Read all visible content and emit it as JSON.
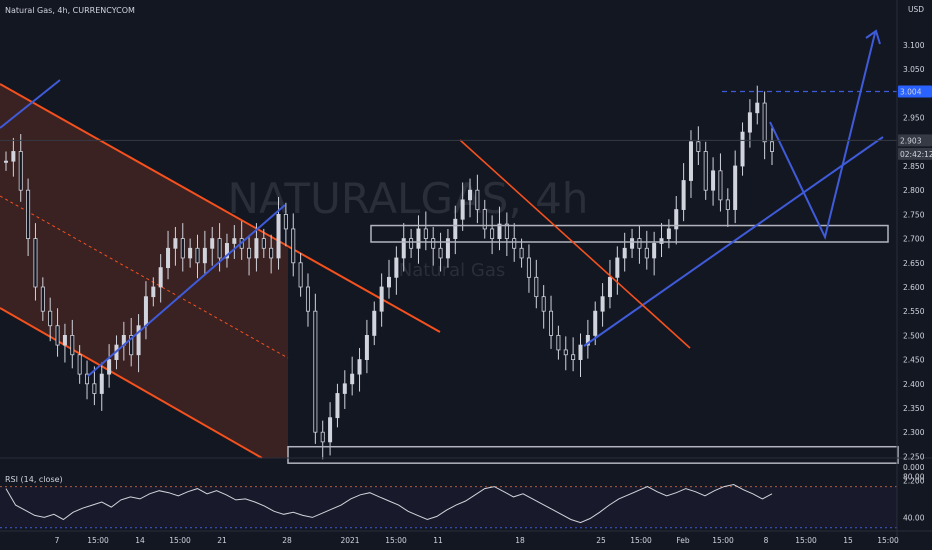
{
  "header": {
    "symbol_text": "Natural Gas, 4h, CURRENCYCOM"
  },
  "watermark": {
    "title": "NATURALGAS, 4h",
    "subtitle": "Natural Gas"
  },
  "currency": "USD",
  "price_badges": [
    {
      "label": "3.004",
      "value": 3.004,
      "color": "#2962ff"
    },
    {
      "label": "2.903",
      "value": 2.903,
      "color": "#363a45"
    },
    {
      "label": "02:42:12",
      "value": 2.875,
      "color": "#363a45"
    }
  ],
  "rsi": {
    "label": "RSI (14, close)",
    "ticks": [
      "80.00",
      "40.00"
    ]
  },
  "colors": {
    "bg": "#131722",
    "candle": "#d1d4dc",
    "channel": "#f4511e",
    "trend": "#3f5bd9",
    "zone": "#b2b5be"
  },
  "chart_data": [
    {
      "type": "candlestick",
      "title": "Natural Gas, 4h, CURRENCYCOM",
      "xlabel": "",
      "ylabel": "USD",
      "ylim": [
        2.18,
        3.13
      ],
      "y_ticks": [
        "3.100",
        "3.050",
        "3.000",
        "2.950",
        "2.900",
        "2.850",
        "2.800",
        "2.750",
        "2.700",
        "2.650",
        "2.600",
        "2.550",
        "2.500",
        "2.450",
        "2.400",
        "2.350",
        "2.300",
        "2.250",
        "2.200"
      ],
      "x_ticks": [
        "7",
        "15:00",
        "14",
        "15:00",
        "21",
        "28",
        "2021",
        "15:00",
        "11",
        "18",
        "25",
        "15:00",
        "Feb",
        "15:00",
        "8",
        "15:00",
        "15",
        "15:00"
      ],
      "close_series": [
        2.86,
        2.88,
        2.8,
        2.7,
        2.6,
        2.55,
        2.52,
        2.48,
        2.5,
        2.46,
        2.42,
        2.4,
        2.38,
        2.42,
        2.45,
        2.48,
        2.5,
        2.46,
        2.52,
        2.58,
        2.6,
        2.64,
        2.68,
        2.7,
        2.66,
        2.68,
        2.65,
        2.68,
        2.7,
        2.66,
        2.69,
        2.7,
        2.68,
        2.66,
        2.7,
        2.68,
        2.66,
        2.75,
        2.72,
        2.65,
        2.6,
        2.55,
        2.3,
        2.28,
        2.33,
        2.38,
        2.4,
        2.42,
        2.45,
        2.5,
        2.55,
        2.6,
        2.62,
        2.66,
        2.7,
        2.68,
        2.72,
        2.7,
        2.68,
        2.66,
        2.7,
        2.74,
        2.78,
        2.8,
        2.76,
        2.72,
        2.7,
        2.73,
        2.7,
        2.68,
        2.66,
        2.62,
        2.58,
        2.55,
        2.5,
        2.47,
        2.46,
        2.45,
        2.48,
        2.5,
        2.55,
        2.58,
        2.62,
        2.66,
        2.68,
        2.7,
        2.68,
        2.66,
        2.69,
        2.7,
        2.72,
        2.76,
        2.82,
        2.9,
        2.88,
        2.8,
        2.84,
        2.78,
        2.76,
        2.85,
        2.92,
        2.96,
        2.98,
        2.9,
        2.88
      ],
      "price_lines": [
        {
          "label": "3.004",
          "value": 3.004,
          "style": "dashed"
        },
        {
          "label": "2.903",
          "value": 2.903,
          "style": "solid"
        }
      ],
      "zones": [
        [
          2.693,
          2.727
        ],
        [
          2.236,
          2.27
        ]
      ],
      "grid": false
    },
    {
      "type": "line",
      "title": "RSI (14, close)",
      "ylim": [
        20,
        90
      ],
      "levels": [
        70,
        30
      ],
      "y_ticks": [
        "80.00",
        "40.00"
      ],
      "values": [
        68,
        52,
        47,
        42,
        40,
        43,
        38,
        45,
        49,
        52,
        55,
        50,
        57,
        60,
        58,
        63,
        66,
        64,
        61,
        65,
        68,
        63,
        66,
        62,
        57,
        58,
        55,
        51,
        46,
        43,
        45,
        42,
        40,
        44,
        48,
        52,
        58,
        62,
        64,
        60,
        56,
        52,
        46,
        42,
        38,
        41,
        47,
        52,
        56,
        62,
        68,
        70,
        65,
        60,
        63,
        58,
        53,
        48,
        43,
        38,
        35,
        39,
        45,
        52,
        58,
        62,
        66,
        70,
        65,
        61,
        64,
        68,
        65,
        61,
        66,
        70,
        72,
        67,
        63,
        58,
        63
      ]
    }
  ]
}
